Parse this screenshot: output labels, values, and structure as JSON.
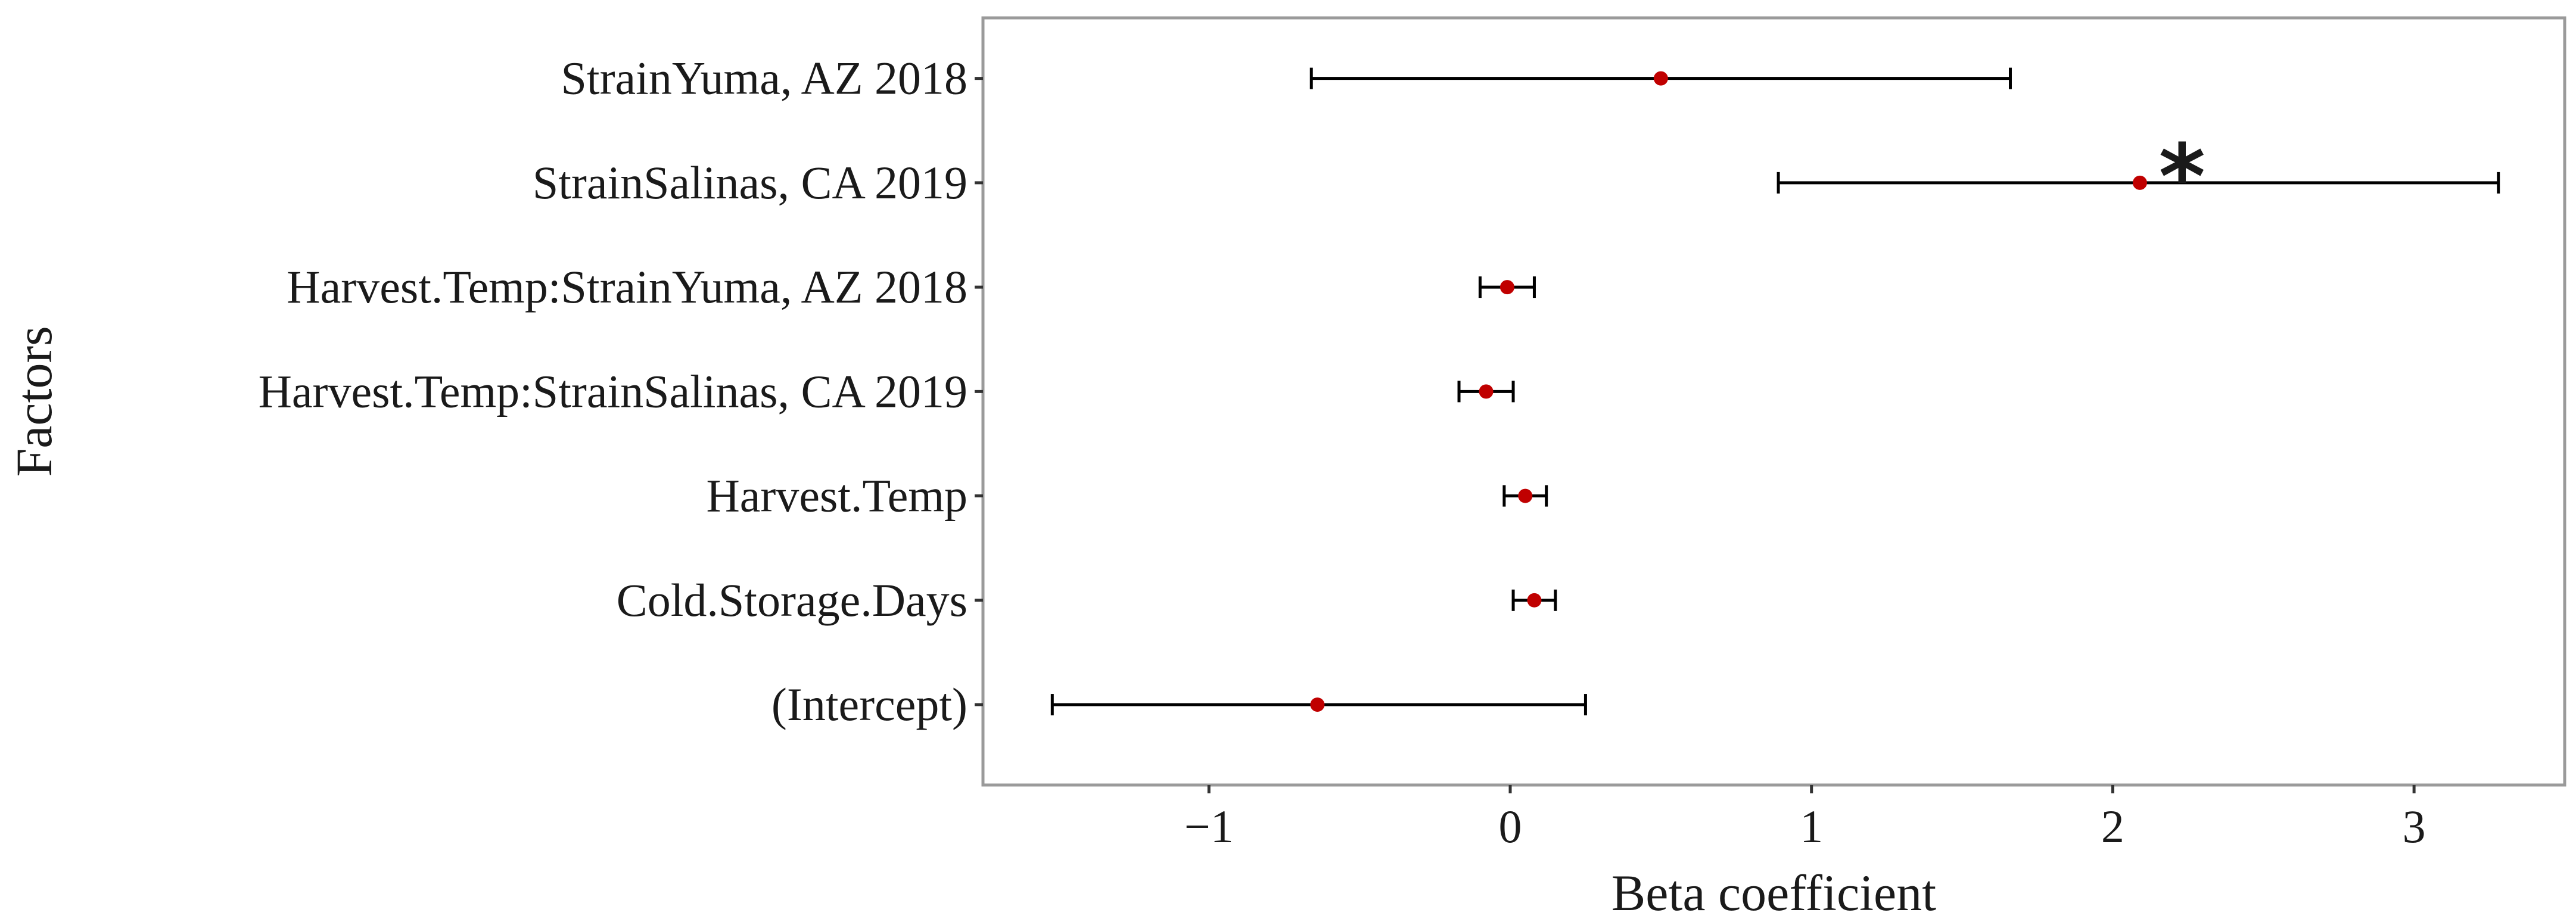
{
  "chart_data": {
    "type": "scatter",
    "subtype": "coefficient-plot-with-error-bars",
    "title": "",
    "xlabel": "Beta coefficient",
    "ylabel": "Factors",
    "xlim": [
      -1.75,
      3.5
    ],
    "x_ticks": [
      -1,
      0,
      1,
      2,
      3
    ],
    "x_tick_labels": [
      "−1",
      "0",
      "1",
      "2",
      "3"
    ],
    "grid": true,
    "legend": "none",
    "point_color": "#c00000",
    "errorbar_color": "#000000",
    "categories": [
      "StrainYuma, AZ 2018",
      "StrainSalinas, CA 2019",
      "Harvest.Temp:StrainYuma, AZ 2018",
      "Harvest.Temp:StrainSalinas, CA 2019",
      "Harvest.Temp",
      "Cold.Storage.Days",
      "(Intercept)"
    ],
    "estimates": [
      0.5,
      2.09,
      -0.01,
      -0.08,
      0.05,
      0.08,
      -0.64
    ],
    "lower": [
      -0.66,
      0.89,
      -0.1,
      -0.17,
      -0.02,
      0.01,
      -1.52
    ],
    "upper": [
      1.66,
      3.28,
      0.08,
      0.01,
      0.12,
      0.15,
      0.25
    ],
    "annotations": [
      {
        "category": "StrainSalinas, CA 2019",
        "text": "*",
        "x": 2.23
      }
    ]
  }
}
